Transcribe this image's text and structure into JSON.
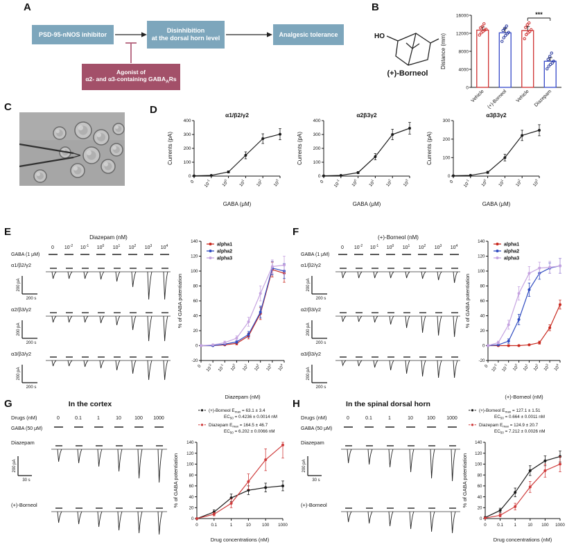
{
  "panelA": {
    "label": "A",
    "box1": "PSD-95-nNOS inhibitor",
    "box2_line1": "Disinhibition",
    "box2_line2": "at the dorsal horn level",
    "box3": "Analgesic tolerance",
    "agonist_line1": "Agonist of",
    "agonist_line2_prefix": "α2- and α3-containing GABA",
    "agonist_line2_sub": "A",
    "agonist_line2_suffix": "Rs",
    "colors": {
      "blue_box": "#7da6bc",
      "maroon_box": "#a35069",
      "inhibit_line": "#b2607a"
    }
  },
  "panelB": {
    "label": "B",
    "ho_label": "HO",
    "molecule_name": "(+)-Borneol",
    "chart": {
      "type": "bar",
      "ylabel": "Distance (mm)",
      "ylim": [
        0,
        16000
      ],
      "yticks": [
        0,
        4000,
        8000,
        12000,
        16000
      ],
      "categories": [
        "Vehicle",
        "(+)-Borneol",
        "Vehicle",
        "Diazepam"
      ],
      "values": [
        12700,
        12100,
        12600,
        5800
      ],
      "errors": [
        700,
        1000,
        900,
        800
      ],
      "bar_colors": [
        "#cf2e2e",
        "#3448c8",
        "#cf2e2e",
        "#3448c8"
      ],
      "dot_colors": [
        "#cf2e2e",
        "#28389e",
        "#cf2e2e",
        "#28389e"
      ],
      "dots": [
        [
          11600,
          12100,
          12400,
          12700,
          12900,
          13200,
          13500,
          14100
        ],
        [
          10200,
          11000,
          11500,
          11900,
          12200,
          12600,
          13100,
          13600
        ],
        [
          10800,
          11700,
          12100,
          12400,
          12800,
          13300,
          13900,
          14300
        ],
        [
          4100,
          4700,
          5100,
          5400,
          5800,
          6200,
          6900,
          7600
        ]
      ],
      "significance": "***"
    }
  },
  "panelC": {
    "label": "C"
  },
  "panelD": {
    "label": "D",
    "charts": [
      {
        "type": "line",
        "title": "α1/β2/γ2",
        "ylabel": "Currents (pA)",
        "xlabel": "GABA (μM)",
        "ylim": [
          0,
          400
        ],
        "yticks": [
          0,
          100,
          200,
          300,
          400
        ],
        "categories": [
          "0",
          "10^-1",
          "10^0",
          "10^1",
          "10^2",
          "10^3"
        ],
        "series": [
          {
            "name": "GABA current",
            "color": "#1a1a1a",
            "values": [
              2,
              5,
              30,
              150,
              270,
              302
            ],
            "errors": [
              2,
              2,
              8,
              25,
              35,
              40
            ]
          }
        ]
      },
      {
        "type": "line",
        "title": "α2β3γ2",
        "ylabel": "Currents (pA)",
        "xlabel": "GABA (μM)",
        "ylim": [
          0,
          400
        ],
        "yticks": [
          0,
          100,
          200,
          300,
          400
        ],
        "categories": [
          "0",
          "10^-1",
          "10^0",
          "10^1",
          "10^2",
          "10^3"
        ],
        "series": [
          {
            "name": "GABA current",
            "color": "#1a1a1a",
            "values": [
              2,
              5,
              25,
              140,
              300,
              345
            ],
            "errors": [
              2,
              2,
              8,
              22,
              38,
              42
            ]
          }
        ]
      },
      {
        "type": "line",
        "title": "α3β3γ2",
        "ylabel": "Currents (pA)",
        "xlabel": "GABA (μM)",
        "ylim": [
          0,
          300
        ],
        "yticks": [
          0,
          100,
          200,
          300
        ],
        "categories": [
          "0",
          "10^-1",
          "10^0",
          "10^1",
          "10^2",
          "10^3"
        ],
        "series": [
          {
            "name": "GABA current",
            "color": "#1a1a1a",
            "values": [
              2,
              4,
              20,
              100,
              220,
              248
            ],
            "errors": [
              2,
              2,
              6,
              18,
              28,
              30
            ]
          }
        ]
      }
    ]
  },
  "panelE": {
    "label": "E",
    "traces": {
      "drug_header": "Diazepam (nM)",
      "concentrations": [
        "0",
        "10^-2",
        "10^-1",
        "10^0",
        "10^1",
        "10^2",
        "10^3",
        "10^4"
      ],
      "gaba_label": "GABA (1 μM)",
      "scale_v": "200 pA",
      "scale_h": "200 s",
      "rows": [
        {
          "label": "α1/β2/γ2",
          "amplitudes": [
            10,
            10,
            10,
            11,
            14,
            22,
            40,
            40
          ]
        },
        {
          "label": "α2/β3/γ2",
          "amplitudes": [
            9,
            9,
            9,
            10,
            13,
            20,
            36,
            36
          ]
        },
        {
          "label": "α3/β3/γ2",
          "amplitudes": [
            8,
            8,
            9,
            11,
            14,
            19,
            28,
            28
          ]
        }
      ]
    },
    "chart": {
      "type": "line",
      "ylabel": "% of GABA potentiation",
      "xlabel": "Diazepam (nM)",
      "ylim": [
        -20,
        140
      ],
      "yticks": [
        -20,
        0,
        20,
        40,
        60,
        80,
        100,
        120,
        140
      ],
      "categories": [
        "0",
        "10^-2",
        "10^-1",
        "10^0",
        "10^1",
        "10^2",
        "10^3",
        "10^4"
      ],
      "series": [
        {
          "name": "alpha1",
          "color": "#c8281e",
          "values": [
            0,
            0,
            1,
            3,
            13,
            43,
            102,
            97
          ],
          "errors": [
            1,
            1,
            1,
            2,
            4,
            8,
            10,
            12
          ]
        },
        {
          "name": "alpha2",
          "color": "#2f4bc0",
          "values": [
            0,
            0,
            2,
            5,
            15,
            45,
            104,
            100
          ],
          "errors": [
            1,
            1,
            1,
            2,
            4,
            8,
            9,
            10
          ]
        },
        {
          "name": "alpha3",
          "color": "#c5a3e0",
          "values": [
            0,
            1,
            4,
            10,
            32,
            70,
            106,
            108
          ],
          "errors": [
            1,
            1,
            2,
            3,
            6,
            10,
            9,
            12
          ]
        }
      ]
    }
  },
  "panelF": {
    "label": "F",
    "traces": {
      "drug_header": "(+)-Borneol (nM)",
      "concentrations": [
        "0",
        "10^-2",
        "10^-1",
        "10^0",
        "10^1",
        "10^2",
        "10^3",
        "10^4"
      ],
      "gaba_label": "GABA (1 μM)",
      "scale_v": "200 pA",
      "scale_h": "200 s",
      "rows": [
        {
          "label": "α1/β2/γ2",
          "amplitudes": [
            9,
            9,
            9,
            9,
            9,
            10,
            12,
            16
          ]
        },
        {
          "label": "α2/β3/γ2",
          "amplitudes": [
            8,
            8,
            9,
            12,
            17,
            24,
            28,
            30
          ]
        },
        {
          "label": "α3/β3/γ2",
          "amplitudes": [
            7,
            8,
            10,
            14,
            19,
            23,
            25,
            25
          ]
        }
      ]
    },
    "chart": {
      "type": "line",
      "ylabel": "% of GABA potentiation",
      "xlabel": "(+)-Borneol (nM)",
      "ylim": [
        -20,
        140
      ],
      "yticks": [
        -20,
        0,
        20,
        40,
        60,
        80,
        100,
        120,
        140
      ],
      "categories": [
        "0",
        "10^-2",
        "10^-1",
        "10^0",
        "10^1",
        "10^2",
        "10^3",
        "10^4"
      ],
      "series": [
        {
          "name": "alpha1",
          "color": "#c8281e",
          "values": [
            0,
            0,
            0,
            0,
            1,
            4,
            24,
            55
          ],
          "errors": [
            1,
            1,
            1,
            1,
            1,
            2,
            4,
            6
          ]
        },
        {
          "name": "alpha2",
          "color": "#2f4bc0",
          "values": [
            0,
            1,
            6,
            35,
            75,
            97,
            104,
            107
          ],
          "errors": [
            1,
            1,
            3,
            7,
            9,
            8,
            7,
            10
          ]
        },
        {
          "name": "alpha3",
          "color": "#c5a3e0",
          "values": [
            0,
            4,
            28,
            70,
            97,
            104,
            105,
            107
          ],
          "errors": [
            1,
            2,
            6,
            9,
            9,
            8,
            8,
            10
          ]
        }
      ]
    }
  },
  "panelG": {
    "label": "G",
    "title": "In the cortex",
    "traces": {
      "drug_row_label": "Drugs (nM)",
      "concentrations": [
        "0",
        "0.1",
        "1",
        "10",
        "100",
        "1000"
      ],
      "gaba_label": "GABA (50 μM)",
      "scale_v": "200 pA",
      "scale_h": "30 s",
      "rows": [
        {
          "label": "Diazepam",
          "amplitudes": [
            18,
            20,
            25,
            32,
            42,
            48
          ]
        },
        {
          "label": "(+)-Borneol",
          "amplitudes": [
            16,
            18,
            22,
            27,
            31,
            33
          ]
        }
      ]
    },
    "chart": {
      "type": "line",
      "ylabel": "% of GABA potentiation",
      "xlabel": "Drug concentrations (nM)",
      "ylim": [
        0,
        140
      ],
      "yticks": [
        0,
        20,
        40,
        60,
        80,
        100,
        120,
        140
      ],
      "categories": [
        "0",
        "0.1",
        "1",
        "10",
        "100",
        "1000"
      ],
      "series": [
        {
          "name": "(+)-Borneol",
          "color": "#1a1a1a",
          "values": [
            0,
            12,
            38,
            52,
            57,
            60
          ],
          "errors": [
            1,
            4,
            7,
            8,
            8,
            9
          ]
        },
        {
          "name": "Diazepam",
          "color": "#cf3c3c",
          "values": [
            0,
            8,
            28,
            68,
            108,
            135
          ],
          "errors": [
            1,
            3,
            8,
            14,
            20,
            24
          ]
        }
      ],
      "legend": [
        {
          "name": "(+)-Borneol",
          "color": "#1a1a1a",
          "emax_prefix": "E",
          "emax_sub": "max",
          "emax_val": "= 63.1 ± 3.4",
          "ec50_prefix": "EC",
          "ec50_sub": "50",
          "ec50_val": "= 0.4236 ± 0.0014 nM"
        },
        {
          "name": "Diazepam",
          "color": "#cf3c3c",
          "emax_prefix": "E",
          "emax_sub": "max",
          "emax_val": "= 164.5 ± 46.7",
          "ec50_prefix": "EC",
          "ec50_sub": "50",
          "ec50_val": "= 6.202 ± 0.0066 nM"
        }
      ]
    }
  },
  "panelH": {
    "label": "H",
    "title": "In the spinal dorsal horn",
    "traces": {
      "drug_row_label": "Drugs (nM)",
      "concentrations": [
        "0",
        "0.1",
        "1",
        "10",
        "100",
        "1000"
      ],
      "gaba_label": "GABA (50 μM)",
      "scale_v": "200 pA",
      "scale_h": "30 s",
      "rows": [
        {
          "label": "Diazepam",
          "amplitudes": [
            20,
            22,
            26,
            33,
            42,
            46
          ]
        },
        {
          "label": "(+)-Borneol",
          "amplitudes": [
            15,
            17,
            21,
            25,
            29,
            31
          ]
        }
      ]
    },
    "chart": {
      "type": "line",
      "ylabel": "% of GABA potentiation",
      "xlabel": "Drug concentrations (nM)",
      "ylim": [
        0,
        140
      ],
      "yticks": [
        0,
        20,
        40,
        60,
        80,
        100,
        120,
        140
      ],
      "categories": [
        "0",
        "0.1",
        "1",
        "10",
        "100",
        "1000"
      ],
      "series": [
        {
          "name": "(+)-Borneol",
          "color": "#1a1a1a",
          "values": [
            2,
            15,
            48,
            88,
            106,
            114
          ],
          "errors": [
            1,
            4,
            8,
            9,
            9,
            10
          ]
        },
        {
          "name": "Diazepam",
          "color": "#cf3c3c",
          "values": [
            1,
            6,
            22,
            58,
            88,
            100
          ],
          "errors": [
            1,
            3,
            6,
            10,
            12,
            14
          ]
        }
      ],
      "legend": [
        {
          "name": "(+)-Borneol",
          "color": "#1a1a1a",
          "emax_prefix": "E",
          "emax_sub": "max",
          "emax_val": "= 127.1 ± 1.51",
          "ec50_prefix": "EC",
          "ec50_sub": "50",
          "ec50_val": "= 0.664 ± 0.0011 nM"
        },
        {
          "name": "Diazepam",
          "color": "#cf3c3c",
          "emax_prefix": "E",
          "emax_sub": "max",
          "emax_val": "= 124.9 ± 20.7",
          "ec50_prefix": "EC",
          "ec50_sub": "50",
          "ec50_val": "= 7.212 ± 0.0026 nM"
        }
      ]
    }
  }
}
